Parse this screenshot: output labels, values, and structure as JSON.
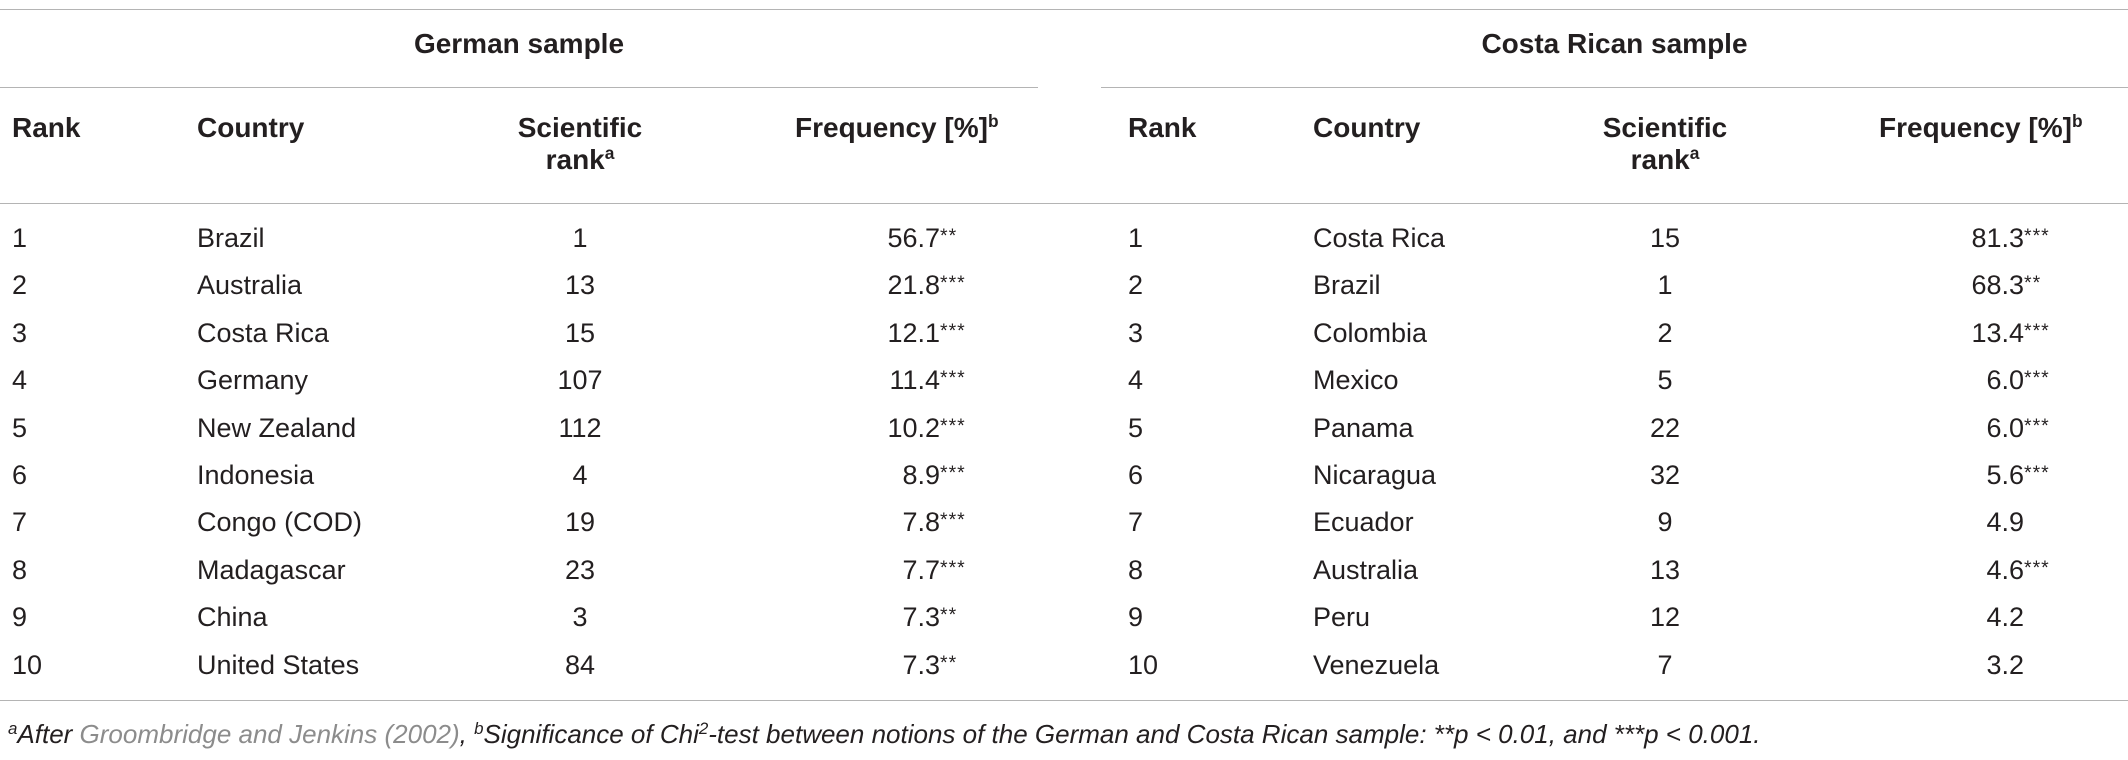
{
  "table": {
    "groups": [
      {
        "title": "German sample",
        "headers": {
          "rank": "Rank",
          "country": "Country",
          "sci_rank_line1": "Scientific",
          "sci_rank_line2": "rank",
          "sci_rank_sup": "a",
          "freq": "Frequency [%]",
          "freq_sup": "b"
        },
        "rows": [
          {
            "rank": "1",
            "country": "Brazil",
            "sci_rank": "1",
            "freq": "56.7",
            "sig": "**"
          },
          {
            "rank": "2",
            "country": "Australia",
            "sci_rank": "13",
            "freq": "21.8",
            "sig": "***"
          },
          {
            "rank": "3",
            "country": "Costa Rica",
            "sci_rank": "15",
            "freq": "12.1",
            "sig": "***"
          },
          {
            "rank": "4",
            "country": "Germany",
            "sci_rank": "107",
            "freq": "11.4",
            "sig": "***"
          },
          {
            "rank": "5",
            "country": "New Zealand",
            "sci_rank": "112",
            "freq": "10.2",
            "sig": "***"
          },
          {
            "rank": "6",
            "country": "Indonesia",
            "sci_rank": "4",
            "freq": "8.9",
            "sig": "***"
          },
          {
            "rank": "7",
            "country": "Congo (COD)",
            "sci_rank": "19",
            "freq": "7.8",
            "sig": "***"
          },
          {
            "rank": "8",
            "country": "Madagascar",
            "sci_rank": "23",
            "freq": "7.7",
            "sig": "***"
          },
          {
            "rank": "9",
            "country": "China",
            "sci_rank": "3",
            "freq": "7.3",
            "sig": "**"
          },
          {
            "rank": "10",
            "country": "United States",
            "sci_rank": "84",
            "freq": "7.3",
            "sig": "**"
          }
        ]
      },
      {
        "title": "Costa Rican sample",
        "headers": {
          "rank": "Rank",
          "country": "Country",
          "sci_rank_line1": "Scientific",
          "sci_rank_line2": "rank",
          "sci_rank_sup": "a",
          "freq": "Frequency [%]",
          "freq_sup": "b"
        },
        "rows": [
          {
            "rank": "1",
            "country": "Costa Rica",
            "sci_rank": "15",
            "freq": "81.3",
            "sig": "***"
          },
          {
            "rank": "2",
            "country": "Brazil",
            "sci_rank": "1",
            "freq": "68.3",
            "sig": "**"
          },
          {
            "rank": "3",
            "country": "Colombia",
            "sci_rank": "2",
            "freq": "13.4",
            "sig": "***"
          },
          {
            "rank": "4",
            "country": "Mexico",
            "sci_rank": "5",
            "freq": "6.0",
            "sig": "***"
          },
          {
            "rank": "5",
            "country": "Panama",
            "sci_rank": "22",
            "freq": "6.0",
            "sig": "***"
          },
          {
            "rank": "6",
            "country": "Nicaragua",
            "sci_rank": "32",
            "freq": "5.6",
            "sig": "***"
          },
          {
            "rank": "7",
            "country": "Ecuador",
            "sci_rank": "9",
            "freq": "4.9",
            "sig": ""
          },
          {
            "rank": "8",
            "country": "Australia",
            "sci_rank": "13",
            "freq": "4.6",
            "sig": "***"
          },
          {
            "rank": "9",
            "country": "Peru",
            "sci_rank": "12",
            "freq": "4.2",
            "sig": ""
          },
          {
            "rank": "10",
            "country": "Venezuela",
            "sci_rank": "7",
            "freq": "3.2",
            "sig": ""
          }
        ]
      }
    ]
  },
  "footnote": {
    "sup_a": "a",
    "part1": "After ",
    "reference": "Groombridge and Jenkins (2002)",
    "part2": ", ",
    "sup_b": "b",
    "part3": "Significance of Chi",
    "sup_2": "2",
    "part4": "-test between notions of the German and Costa Rican sample: ",
    "stars2": "**",
    "part5": "p < 0.01, and ",
    "stars3": "***",
    "part6": "p < 0.001."
  }
}
